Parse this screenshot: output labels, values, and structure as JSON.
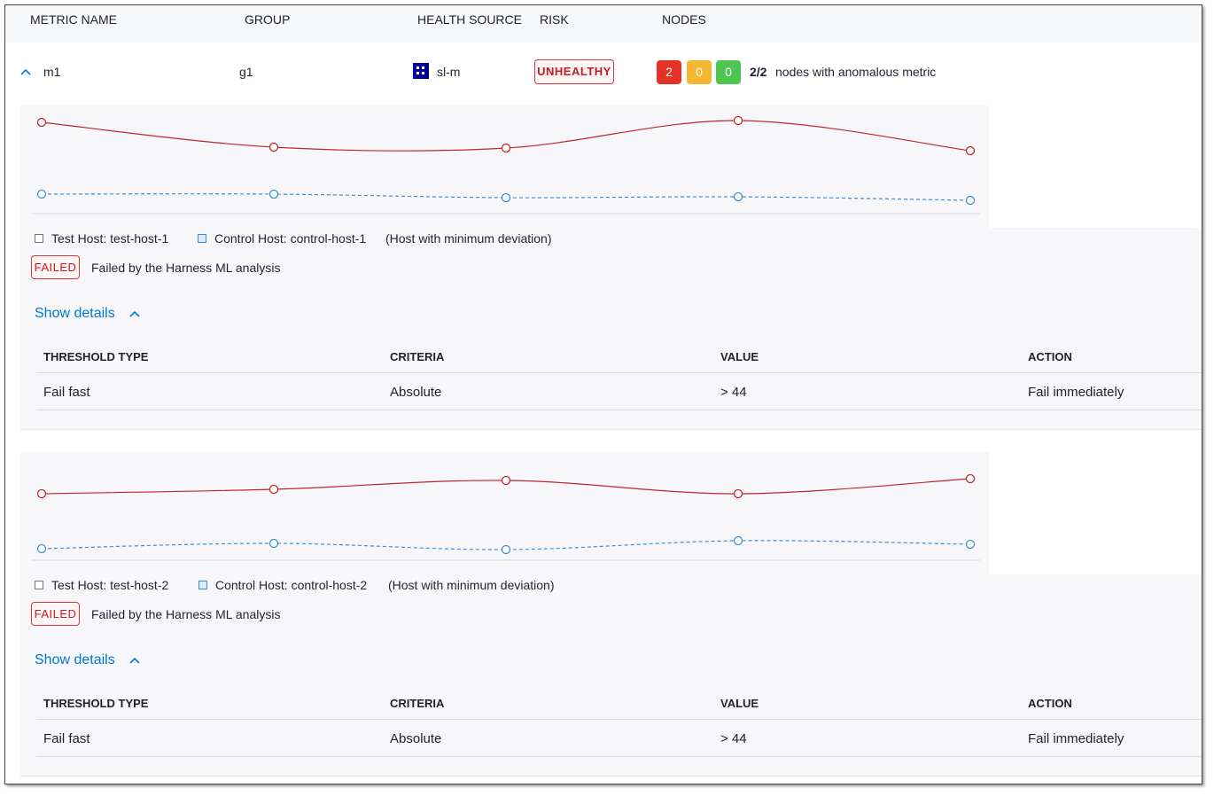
{
  "header": {
    "columns": [
      "METRIC NAME",
      "GROUP",
      "HEALTH SOURCE",
      "RISK",
      "NODES"
    ]
  },
  "row": {
    "metric": "m1",
    "group": "g1",
    "health_source": "sl-m",
    "risk": "UNHEALTHY",
    "node_counts": [
      2,
      0,
      0
    ],
    "summary_count": "2/2",
    "summary_text": "nodes with anomalous metric"
  },
  "nodes": [
    {
      "chart_data": {
        "type": "line",
        "series": [
          {
            "name": "Test Host: test-host-1",
            "color": "#c0262d",
            "values": [
              113,
              85,
              84,
              115,
              81
            ]
          },
          {
            "name": "Control Host: control-host-1",
            "color": "#3b8fd6",
            "values": [
              32,
              32,
              28,
              29,
              25
            ]
          }
        ]
      },
      "legend_note": "(Host with minimum deviation)",
      "status": "FAILED",
      "status_text": "Failed by the Harness ML analysis",
      "details_toggle": "Show details",
      "table": {
        "headers": [
          "THRESHOLD TYPE",
          "CRITERIA",
          "VALUE",
          "ACTION"
        ],
        "rows": [
          [
            "Fail fast",
            "Absolute",
            "> 44",
            "Fail immediately"
          ]
        ]
      }
    },
    {
      "chart_data": {
        "type": "line",
        "series": [
          {
            "name": "Test Host: test-host-2",
            "color": "#c0262d",
            "values": [
              83,
              88,
              98,
              83,
              100
            ]
          },
          {
            "name": "Control Host: control-host-2",
            "color": "#3b8fd6",
            "values": [
              21,
              27,
              20,
              30,
              26
            ]
          }
        ]
      },
      "legend_note": "(Host with minimum deviation)",
      "status": "FAILED",
      "status_text": "Failed by the Harness ML analysis",
      "details_toggle": "Show details",
      "table": {
        "headers": [
          "THRESHOLD TYPE",
          "CRITERIA",
          "VALUE",
          "ACTION"
        ],
        "rows": [
          [
            "Fail fast",
            "Absolute",
            "> 44",
            "Fail immediately"
          ]
        ]
      }
    }
  ]
}
